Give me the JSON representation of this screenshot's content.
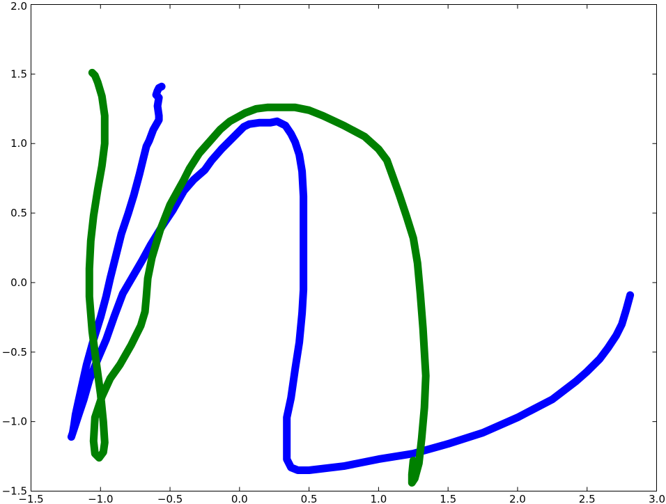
{
  "chart_data": {
    "type": "line",
    "title": "",
    "xlabel": "",
    "ylabel": "",
    "xlim": [
      -1.5,
      3.0
    ],
    "ylim": [
      -1.5,
      2.0
    ],
    "grid": false,
    "xticks": [
      -1.5,
      -1.0,
      -0.5,
      0.0,
      0.5,
      1.0,
      1.5,
      2.0,
      2.5,
      3.0
    ],
    "xtick_labels": [
      "−1.5",
      "−1.0",
      "−0.5",
      "0.0",
      "0.5",
      "1.0",
      "1.5",
      "2.0",
      "2.5",
      "3.0"
    ],
    "yticks": [
      -1.5,
      -1.0,
      -0.5,
      0.0,
      0.5,
      1.0,
      1.5,
      2.0
    ],
    "ytick_labels": [
      "−1.5",
      "−1.0",
      "−0.5",
      "0.0",
      "0.5",
      "1.0",
      "1.5",
      "2.0"
    ],
    "series": [
      {
        "color": "#0000ff",
        "points": [
          [
            -0.56,
            1.41
          ],
          [
            -0.58,
            1.4
          ],
          [
            -0.59,
            1.38
          ],
          [
            -0.6,
            1.35
          ],
          [
            -0.58,
            1.33
          ],
          [
            -0.59,
            1.27
          ],
          [
            -0.58,
            1.2
          ],
          [
            -0.58,
            1.17
          ],
          [
            -0.62,
            1.1
          ],
          [
            -0.65,
            1.02
          ],
          [
            -0.67,
            0.98
          ],
          [
            -0.69,
            0.9
          ],
          [
            -0.72,
            0.78
          ],
          [
            -0.76,
            0.63
          ],
          [
            -0.8,
            0.5
          ],
          [
            -0.85,
            0.35
          ],
          [
            -0.89,
            0.19
          ],
          [
            -0.93,
            0.03
          ],
          [
            -0.96,
            -0.1
          ],
          [
            -1.0,
            -0.25
          ],
          [
            -1.05,
            -0.41
          ],
          [
            -1.1,
            -0.59
          ],
          [
            -1.12,
            -0.68
          ],
          [
            -1.14,
            -0.77
          ],
          [
            -1.16,
            -0.86
          ],
          [
            -1.18,
            -0.95
          ],
          [
            -1.19,
            -1.02
          ],
          [
            -1.2,
            -1.08
          ],
          [
            -1.21,
            -1.11
          ],
          [
            -1.19,
            -1.05
          ],
          [
            -1.16,
            -0.96
          ],
          [
            -1.12,
            -0.84
          ],
          [
            -1.08,
            -0.7
          ],
          [
            -1.02,
            -0.55
          ],
          [
            -0.96,
            -0.41
          ],
          [
            -0.9,
            -0.24
          ],
          [
            -0.84,
            -0.08
          ],
          [
            -0.77,
            0.04
          ],
          [
            -0.7,
            0.16
          ],
          [
            -0.64,
            0.27
          ],
          [
            -0.56,
            0.4
          ],
          [
            -0.48,
            0.52
          ],
          [
            -0.4,
            0.66
          ],
          [
            -0.33,
            0.74
          ],
          [
            -0.25,
            0.81
          ],
          [
            -0.2,
            0.88
          ],
          [
            -0.13,
            0.96
          ],
          [
            -0.07,
            1.02
          ],
          [
            0.03,
            1.12
          ],
          [
            0.07,
            1.14
          ],
          [
            0.14,
            1.15
          ],
          [
            0.19,
            1.15
          ],
          [
            0.22,
            1.15
          ],
          [
            0.27,
            1.16
          ],
          [
            0.33,
            1.13
          ],
          [
            0.37,
            1.07
          ],
          [
            0.4,
            1.01
          ],
          [
            0.43,
            0.92
          ],
          [
            0.45,
            0.8
          ],
          [
            0.46,
            0.62
          ],
          [
            0.46,
            0.4
          ],
          [
            0.46,
            0.19
          ],
          [
            0.46,
            -0.05
          ],
          [
            0.45,
            -0.22
          ],
          [
            0.43,
            -0.43
          ],
          [
            0.4,
            -0.62
          ],
          [
            0.37,
            -0.83
          ],
          [
            0.34,
            -0.97
          ],
          [
            0.34,
            -1.14
          ],
          [
            0.34,
            -1.27
          ],
          [
            0.37,
            -1.33
          ],
          [
            0.42,
            -1.35
          ],
          [
            0.5,
            -1.35
          ],
          [
            0.75,
            -1.32
          ],
          [
            1.0,
            -1.27
          ],
          [
            1.25,
            -1.23
          ],
          [
            1.5,
            -1.16
          ],
          [
            1.75,
            -1.08
          ],
          [
            2.0,
            -0.97
          ],
          [
            2.25,
            -0.84
          ],
          [
            2.42,
            -0.71
          ],
          [
            2.5,
            -0.64
          ],
          [
            2.59,
            -0.55
          ],
          [
            2.65,
            -0.47
          ],
          [
            2.71,
            -0.38
          ],
          [
            2.75,
            -0.3
          ],
          [
            2.78,
            -0.2
          ],
          [
            2.81,
            -0.09
          ]
        ]
      },
      {
        "color": "#008000",
        "points": [
          [
            -1.06,
            1.51
          ],
          [
            -1.04,
            1.49
          ],
          [
            -1.02,
            1.44
          ],
          [
            -0.99,
            1.34
          ],
          [
            -0.97,
            1.2
          ],
          [
            -0.97,
            1.0
          ],
          [
            -0.99,
            0.84
          ],
          [
            -1.02,
            0.67
          ],
          [
            -1.05,
            0.48
          ],
          [
            -1.07,
            0.3
          ],
          [
            -1.08,
            0.1
          ],
          [
            -1.08,
            -0.1
          ],
          [
            -1.06,
            -0.35
          ],
          [
            -1.03,
            -0.58
          ],
          [
            -1.0,
            -0.8
          ],
          [
            -0.98,
            -1.0
          ],
          [
            -0.97,
            -1.15
          ],
          [
            -0.98,
            -1.22
          ],
          [
            -1.01,
            -1.26
          ],
          [
            -1.04,
            -1.23
          ],
          [
            -1.05,
            -1.14
          ],
          [
            -1.04,
            -0.97
          ],
          [
            -0.99,
            -0.82
          ],
          [
            -0.93,
            -0.69
          ],
          [
            -0.86,
            -0.59
          ],
          [
            -0.78,
            -0.45
          ],
          [
            -0.71,
            -0.31
          ],
          [
            -0.68,
            -0.21
          ],
          [
            -0.67,
            -0.1
          ],
          [
            -0.66,
            0.03
          ],
          [
            -0.63,
            0.18
          ],
          [
            -0.57,
            0.38
          ],
          [
            -0.5,
            0.56
          ],
          [
            -0.4,
            0.74
          ],
          [
            -0.36,
            0.82
          ],
          [
            -0.29,
            0.93
          ],
          [
            -0.21,
            1.02
          ],
          [
            -0.14,
            1.1
          ],
          [
            -0.07,
            1.16
          ],
          [
            0.04,
            1.22
          ],
          [
            0.12,
            1.25
          ],
          [
            0.2,
            1.26
          ],
          [
            0.3,
            1.26
          ],
          [
            0.4,
            1.26
          ],
          [
            0.5,
            1.24
          ],
          [
            0.6,
            1.2
          ],
          [
            0.75,
            1.13
          ],
          [
            0.9,
            1.05
          ],
          [
            1.0,
            0.96
          ],
          [
            1.06,
            0.88
          ],
          [
            1.1,
            0.77
          ],
          [
            1.15,
            0.63
          ],
          [
            1.2,
            0.48
          ],
          [
            1.25,
            0.32
          ],
          [
            1.28,
            0.14
          ],
          [
            1.3,
            -0.08
          ],
          [
            1.32,
            -0.33
          ],
          [
            1.34,
            -0.67
          ],
          [
            1.33,
            -0.9
          ],
          [
            1.31,
            -1.12
          ],
          [
            1.29,
            -1.3
          ],
          [
            1.26,
            -1.41
          ],
          [
            1.24,
            -1.44
          ],
          [
            1.24,
            -1.38
          ],
          [
            1.25,
            -1.28
          ]
        ]
      }
    ]
  }
}
